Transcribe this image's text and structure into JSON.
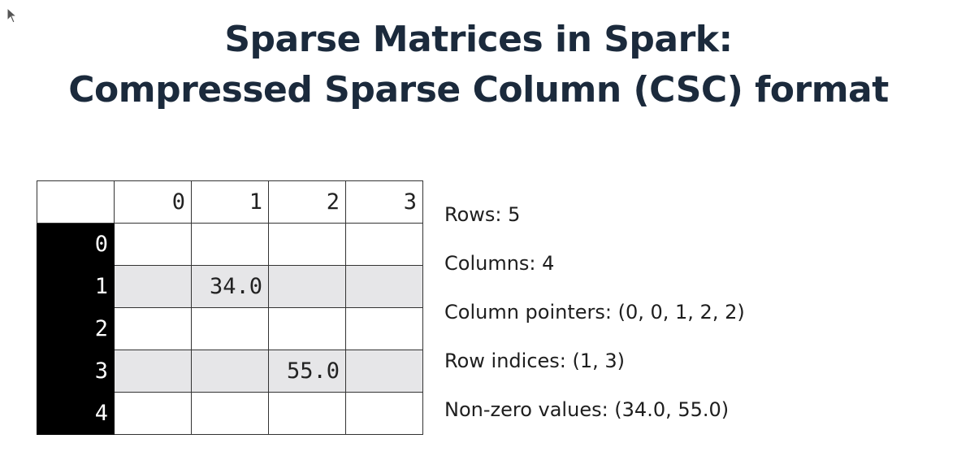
{
  "title": {
    "line1": "Sparse Matrices in Spark:",
    "line2": "Compressed Sparse Column (CSC) format"
  },
  "matrix": {
    "column_headers": [
      "0",
      "1",
      "2",
      "3"
    ],
    "row_headers": [
      "0",
      "1",
      "2",
      "3",
      "4"
    ],
    "cells": [
      [
        "",
        "",
        "",
        ""
      ],
      [
        "",
        "34.0",
        "",
        ""
      ],
      [
        "",
        "",
        "",
        ""
      ],
      [
        "",
        "",
        "55.0",
        ""
      ],
      [
        "",
        "",
        "",
        ""
      ]
    ]
  },
  "info": {
    "rows": "Rows: 5",
    "columns": "Columns: 4",
    "column_pointers": "Column pointers: (0, 0, 1, 2, 2)",
    "row_indices": "Row indices: (1, 3)",
    "values": "Non-zero values: (34.0, 55.0)"
  },
  "colors": {
    "title": "#1b2a3c",
    "row_header_bg": "#000000",
    "shaded_row_bg": "#e6e6e8"
  },
  "icons": {
    "cursor": "mouse-pointer-icon"
  }
}
